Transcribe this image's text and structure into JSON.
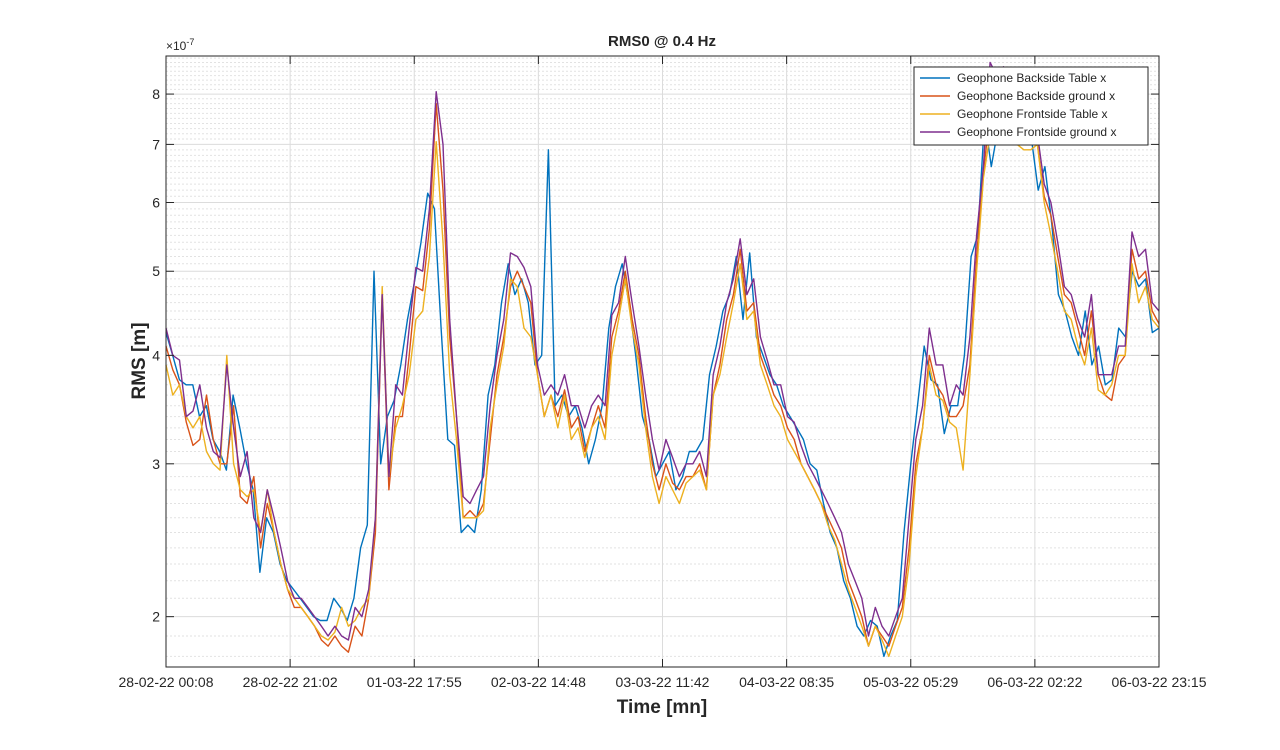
{
  "chart_data": {
    "type": "line",
    "title": "RMS0 @ 0.4 Hz",
    "xlabel": "Time [mn]",
    "ylabel": "RMS [m]",
    "y_exponent_label": "×10",
    "y_exponent": "-7",
    "y_scale": "log",
    "ylim": [
      1.75,
      8.85
    ],
    "y_ticks": [
      2,
      3,
      4,
      5,
      6,
      7,
      8
    ],
    "x_ticks": [
      "28-02-22 00:08",
      "28-02-22 21:02",
      "01-03-22 17:55",
      "02-03-22 14:48",
      "03-03-22 11:42",
      "04-03-22 08:35",
      "05-03-22 05:29",
      "06-03-22 02:22",
      "06-03-22 23:15"
    ],
    "grid": true,
    "legend_position": "top-right",
    "series": [
      {
        "name": "Geophone Backside Table x",
        "color": "#0072BD",
        "values": [
          4.25,
          4.0,
          3.75,
          3.7,
          3.7,
          3.4,
          3.5,
          3.2,
          3.1,
          2.95,
          3.6,
          3.3,
          3.0,
          2.8,
          2.25,
          2.6,
          2.5,
          2.3,
          2.2,
          2.15,
          2.1,
          2.05,
          2.0,
          1.98,
          1.98,
          2.1,
          2.05,
          1.98,
          2.1,
          2.4,
          2.55,
          5.0,
          3.0,
          3.4,
          3.55,
          3.9,
          4.4,
          4.85,
          5.4,
          6.15,
          5.9,
          4.3,
          3.2,
          3.15,
          2.5,
          2.55,
          2.5,
          2.8,
          3.6,
          3.9,
          4.6,
          5.1,
          4.7,
          4.9,
          4.6,
          3.9,
          4.0,
          6.9,
          3.5,
          3.6,
          3.4,
          3.5,
          3.3,
          3.0,
          3.2,
          3.5,
          4.3,
          4.8,
          5.1,
          4.6,
          4.0,
          3.4,
          3.2,
          2.9,
          3.0,
          3.1,
          2.8,
          2.9,
          3.1,
          3.1,
          3.2,
          3.8,
          4.1,
          4.5,
          4.7,
          5.2,
          4.4,
          5.25,
          4.2,
          4.0,
          3.8,
          3.7,
          3.5,
          3.4,
          3.3,
          3.2,
          3.0,
          2.95,
          2.7,
          2.5,
          2.4,
          2.2,
          2.1,
          1.95,
          1.9,
          1.98,
          1.95,
          1.8,
          1.9,
          1.98,
          2.5,
          3.0,
          3.5,
          4.1,
          3.75,
          3.7,
          3.25,
          3.5,
          3.5,
          4.0,
          5.2,
          5.5,
          7.5,
          6.6,
          7.3,
          7.3,
          7.2,
          7.3,
          7.0,
          7.1,
          6.2,
          6.6,
          5.7,
          4.7,
          4.5,
          4.2,
          4.0,
          4.5,
          3.9,
          4.1,
          3.7,
          3.75,
          4.3,
          4.2,
          5.0,
          4.8,
          4.9,
          4.25,
          4.3
        ]
      },
      {
        "name": "Geophone Backside ground x",
        "color": "#D95319",
        "values": [
          4.1,
          3.85,
          3.7,
          3.35,
          3.15,
          3.2,
          3.6,
          3.2,
          3.0,
          3.0,
          3.5,
          2.75,
          2.7,
          2.9,
          2.4,
          2.7,
          2.5,
          2.3,
          2.15,
          2.05,
          2.05,
          2.0,
          1.95,
          1.88,
          1.85,
          1.9,
          1.85,
          1.82,
          1.95,
          1.9,
          2.1,
          2.5,
          4.7,
          2.8,
          3.4,
          3.4,
          4.0,
          4.8,
          4.75,
          5.6,
          7.8,
          6.2,
          4.2,
          3.4,
          2.6,
          2.65,
          2.6,
          2.7,
          3.2,
          3.8,
          4.2,
          4.8,
          5.0,
          4.8,
          4.6,
          3.8,
          3.4,
          3.6,
          3.4,
          3.65,
          3.3,
          3.4,
          3.1,
          3.3,
          3.5,
          3.3,
          4.2,
          4.5,
          5.0,
          4.4,
          4.0,
          3.4,
          3.0,
          2.8,
          3.0,
          2.85,
          2.8,
          2.9,
          2.9,
          3.0,
          2.8,
          3.6,
          3.9,
          4.4,
          4.7,
          5.3,
          4.5,
          4.6,
          4.0,
          3.8,
          3.6,
          3.5,
          3.3,
          3.2,
          3.0,
          2.9,
          2.8,
          2.7,
          2.6,
          2.5,
          2.4,
          2.2,
          2.1,
          2.0,
          1.85,
          1.95,
          1.9,
          1.85,
          1.95,
          2.05,
          2.4,
          3.0,
          3.3,
          4.0,
          3.7,
          3.6,
          3.4,
          3.4,
          3.5,
          3.9,
          5.2,
          6.5,
          7.6,
          7.3,
          7.5,
          7.6,
          7.0,
          7.0,
          7.1,
          7.0,
          6.1,
          5.8,
          5.2,
          4.7,
          4.6,
          4.3,
          4.0,
          4.5,
          3.8,
          3.6,
          3.55,
          3.9,
          4.0,
          5.3,
          4.9,
          5.0,
          4.5,
          4.35
        ]
      },
      {
        "name": "Geophone Frontside Table x",
        "color": "#EDB120",
        "values": [
          3.9,
          3.6,
          3.7,
          3.4,
          3.3,
          3.4,
          3.1,
          3.0,
          2.95,
          4.0,
          3.0,
          2.8,
          2.75,
          2.8,
          2.5,
          2.8,
          2.5,
          2.3,
          2.15,
          2.1,
          2.05,
          2.0,
          1.95,
          1.9,
          1.88,
          1.92,
          2.05,
          1.95,
          1.98,
          2.05,
          2.1,
          2.6,
          4.8,
          2.9,
          3.3,
          3.5,
          3.8,
          4.4,
          4.5,
          5.2,
          7.05,
          5.4,
          3.8,
          3.2,
          2.6,
          2.6,
          2.6,
          2.65,
          3.3,
          3.7,
          4.1,
          4.9,
          4.8,
          4.3,
          4.2,
          3.8,
          3.4,
          3.6,
          3.3,
          3.6,
          3.2,
          3.3,
          3.05,
          3.3,
          3.4,
          3.2,
          4.0,
          4.4,
          4.9,
          4.3,
          3.9,
          3.3,
          2.9,
          2.7,
          2.9,
          2.8,
          2.7,
          2.85,
          2.9,
          2.95,
          2.8,
          3.6,
          3.8,
          4.2,
          4.6,
          5.1,
          4.4,
          4.5,
          3.9,
          3.7,
          3.5,
          3.4,
          3.2,
          3.1,
          3.0,
          2.9,
          2.8,
          2.7,
          2.55,
          2.45,
          2.3,
          2.15,
          2.05,
          1.95,
          1.85,
          1.95,
          1.88,
          1.8,
          1.9,
          2.0,
          2.3,
          2.9,
          3.3,
          3.9,
          3.6,
          3.55,
          3.35,
          3.3,
          2.95,
          3.8,
          5.0,
          6.4,
          7.2,
          7.2,
          7.3,
          7.5,
          7.0,
          6.9,
          6.9,
          7.0,
          6.0,
          5.5,
          5.0,
          4.5,
          4.4,
          4.1,
          3.9,
          4.3,
          3.65,
          3.6,
          3.7,
          4.0,
          4.0,
          5.1,
          4.6,
          4.8,
          4.4,
          4.3
        ]
      },
      {
        "name": "Geophone Frontside ground x",
        "color": "#7E2F8E",
        "values": [
          4.3,
          4.0,
          3.95,
          3.4,
          3.45,
          3.7,
          3.3,
          3.1,
          3.05,
          3.9,
          3.3,
          2.9,
          3.1,
          2.6,
          2.5,
          2.8,
          2.6,
          2.4,
          2.2,
          2.1,
          2.1,
          2.05,
          2.0,
          1.95,
          1.9,
          1.95,
          1.9,
          1.88,
          2.05,
          2.0,
          2.15,
          2.6,
          4.7,
          2.9,
          3.7,
          3.6,
          4.3,
          5.05,
          5.0,
          5.9,
          8.05,
          7.0,
          4.4,
          3.4,
          2.75,
          2.7,
          2.8,
          2.9,
          3.5,
          4.0,
          4.4,
          5.25,
          5.2,
          5.05,
          4.8,
          3.9,
          3.6,
          3.7,
          3.6,
          3.8,
          3.5,
          3.5,
          3.3,
          3.5,
          3.6,
          3.5,
          4.45,
          4.6,
          5.2,
          4.6,
          4.1,
          3.6,
          3.2,
          2.95,
          3.2,
          3.05,
          2.9,
          3.0,
          3.0,
          3.1,
          2.9,
          3.8,
          4.1,
          4.6,
          4.9,
          5.45,
          4.7,
          4.9,
          4.2,
          3.95,
          3.7,
          3.7,
          3.4,
          3.35,
          3.15,
          3.0,
          2.9,
          2.8,
          2.7,
          2.6,
          2.5,
          2.3,
          2.2,
          2.1,
          1.9,
          2.05,
          1.95,
          1.9,
          2.0,
          2.1,
          2.6,
          3.2,
          3.5,
          4.3,
          3.9,
          3.9,
          3.5,
          3.7,
          3.6,
          4.2,
          5.5,
          6.6,
          8.7,
          8.4,
          8.6,
          8.3,
          7.3,
          7.2,
          7.3,
          7.2,
          6.3,
          6.0,
          5.4,
          4.8,
          4.7,
          4.4,
          4.2,
          4.7,
          3.8,
          3.8,
          3.8,
          4.1,
          4.1,
          5.55,
          5.2,
          5.3,
          4.6,
          4.5
        ]
      }
    ]
  }
}
